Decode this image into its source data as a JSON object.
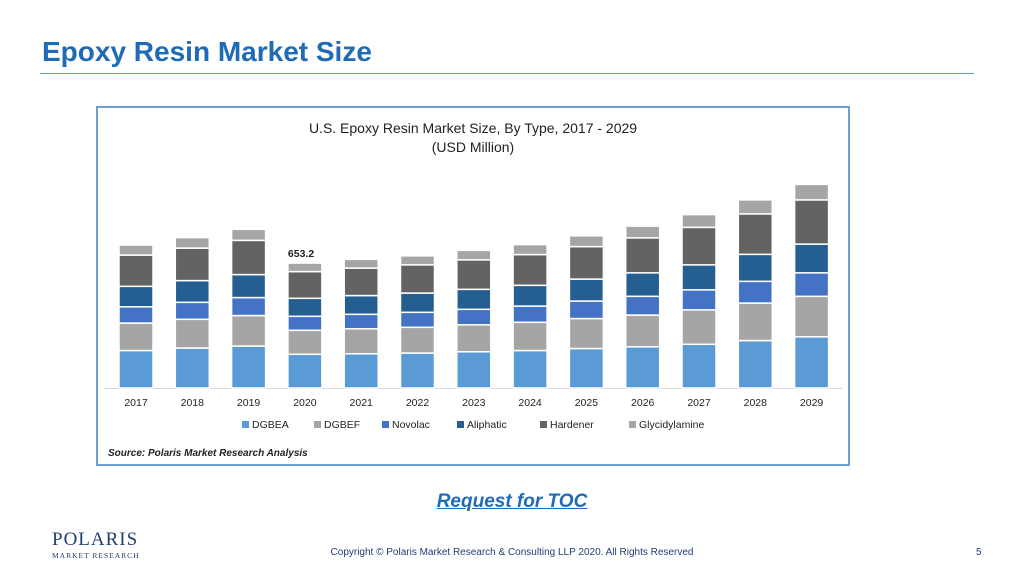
{
  "slide": {
    "title": "Epoxy Resin Market Size",
    "toc_link": "Request for TOC",
    "logo_main": "POLARIS",
    "logo_sub": "MARKET RESEARCH",
    "copyright": "Copyright © Polaris Market Research & Consulting LLP 2020. All Rights Reserved",
    "page_number": "5"
  },
  "chart_data": {
    "type": "bar",
    "stacked": true,
    "title": "U.S. Epoxy Resin Market Size, By Type, 2017 - 2029",
    "subtitle": "(USD Million)",
    "source": "Source: Polaris  Market Research Analysis",
    "categories": [
      "2017",
      "2018",
      "2019",
      "2020",
      "2021",
      "2022",
      "2023",
      "2024",
      "2025",
      "2026",
      "2027",
      "2028",
      "2029"
    ],
    "annotations": [
      {
        "category": "2020",
        "text": "653.2"
      }
    ],
    "legend_position": "bottom",
    "grid": false,
    "ylim": [
      0,
      1160
    ],
    "series": [
      {
        "name": "DGBEA",
        "color": "#5b9bd5",
        "values": [
          150,
          160,
          168,
          135,
          137,
          140,
          145,
          150,
          158,
          165,
          175,
          190,
          205
        ]
      },
      {
        "name": "DGBEF",
        "color": "#a5a5a5",
        "values": [
          110,
          115,
          122,
          96,
          100,
          103,
          108,
          113,
          120,
          127,
          138,
          150,
          162
        ]
      },
      {
        "name": "Novolac",
        "color": "#4472c4",
        "values": [
          65,
          68,
          72,
          56,
          58,
          60,
          62,
          65,
          70,
          75,
          80,
          87,
          94
        ]
      },
      {
        "name": "Aliphatic",
        "color": "#255e91",
        "values": [
          82,
          87,
          92,
          72,
          75,
          77,
          80,
          83,
          88,
          94,
          100,
          108,
          115
        ]
      },
      {
        "name": "Hardener",
        "color": "#636363",
        "values": [
          125,
          130,
          137,
          107,
          110,
          113,
          118,
          123,
          130,
          140,
          150,
          162,
          177
        ]
      },
      {
        "name": "Glycidylamine",
        "color": "#a5a5a5",
        "values": [
          40,
          42,
          44,
          34,
          35,
          36,
          38,
          40,
          43,
          47,
          51,
          56,
          62
        ]
      }
    ]
  }
}
